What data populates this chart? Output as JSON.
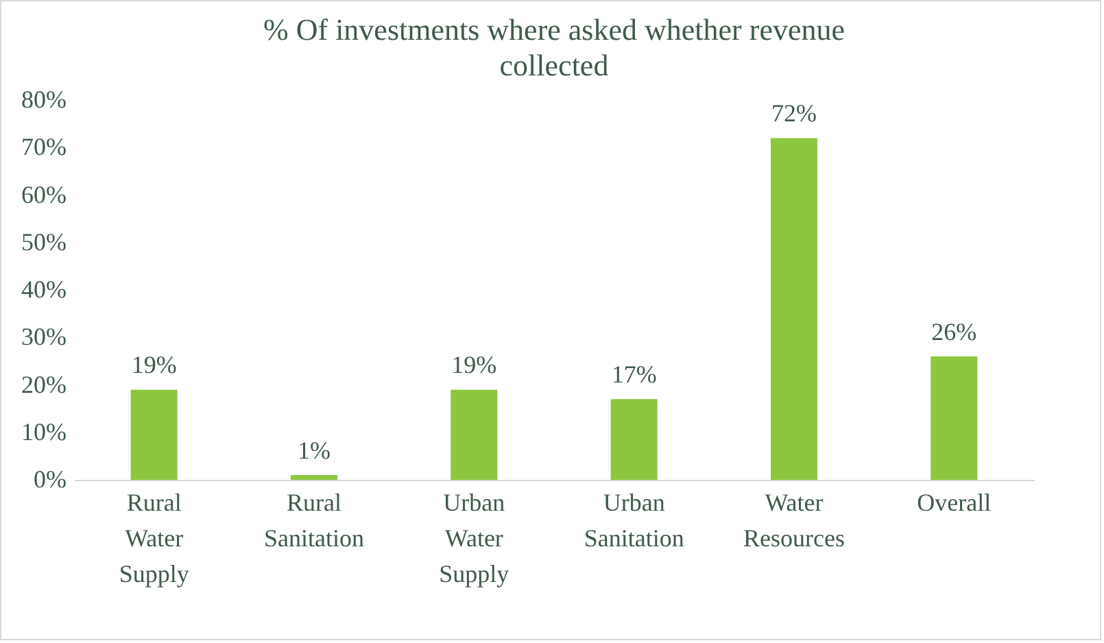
{
  "chart_data": {
    "type": "bar",
    "title": "% Of investments where asked whether revenue collected",
    "categories": [
      "Rural Water Supply",
      "Rural Sanitation",
      "Urban Water Supply",
      "Urban Sanitation",
      "Water Resources",
      "Overall"
    ],
    "values": [
      19,
      1,
      19,
      17,
      72,
      26
    ],
    "value_labels": [
      "19%",
      "1%",
      "19%",
      "17%",
      "72%",
      "26%"
    ],
    "color": "#8cc63f",
    "ylim": [
      0,
      80
    ],
    "yticks": [
      {
        "value": 0,
        "label": "0%"
      },
      {
        "value": 10,
        "label": "10%"
      },
      {
        "value": 20,
        "label": "20%"
      },
      {
        "value": 30,
        "label": "30%"
      },
      {
        "value": 40,
        "label": "40%"
      },
      {
        "value": 50,
        "label": "50%"
      },
      {
        "value": 60,
        "label": "60%"
      },
      {
        "value": 70,
        "label": "70%"
      },
      {
        "value": 80,
        "label": "80%"
      }
    ],
    "grid": false
  }
}
